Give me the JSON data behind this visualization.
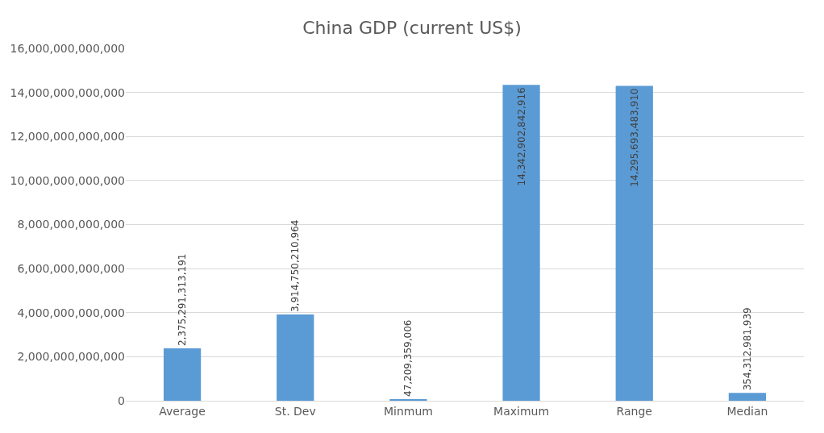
{
  "chart_data": {
    "type": "bar",
    "title": "China GDP (current US$)",
    "categories": [
      "Average",
      "St. Dev",
      "Minmum",
      "Maximum",
      "Range",
      "Median"
    ],
    "values": [
      2375291313191,
      3914750210964,
      47209359006,
      14342902842916,
      14295693483910,
      354312981939
    ],
    "value_labels": [
      "2,375,291,313,191",
      "3,914,750,210,964",
      "47,209,359,006",
      "14,342,902,842,916",
      "14,295,693,483,910",
      "354,312,981,939"
    ],
    "color": "#5b9bd5",
    "ylim": [
      0,
      16000000000000
    ],
    "yticks": [
      0,
      {
        "value": 2000000000000,
        "label": "2,000,000,000,000"
      },
      {
        "value": 4000000000000,
        "label": "4,000,000,000,000"
      },
      {
        "value": 6000000000000,
        "label": "6,000,000,000,000"
      },
      {
        "value": 8000000000000,
        "label": "8,000,000,000,000"
      },
      {
        "value": 10000000000000,
        "label": "10,000,000,000,000"
      },
      {
        "value": 12000000000000,
        "label": "12,000,000,000,000"
      },
      {
        "value": 14000000000000,
        "label": "14,000,000,000,000"
      },
      {
        "value": 16000000000000,
        "label": "16,000,000,000,000"
      }
    ],
    "grid": "y"
  }
}
